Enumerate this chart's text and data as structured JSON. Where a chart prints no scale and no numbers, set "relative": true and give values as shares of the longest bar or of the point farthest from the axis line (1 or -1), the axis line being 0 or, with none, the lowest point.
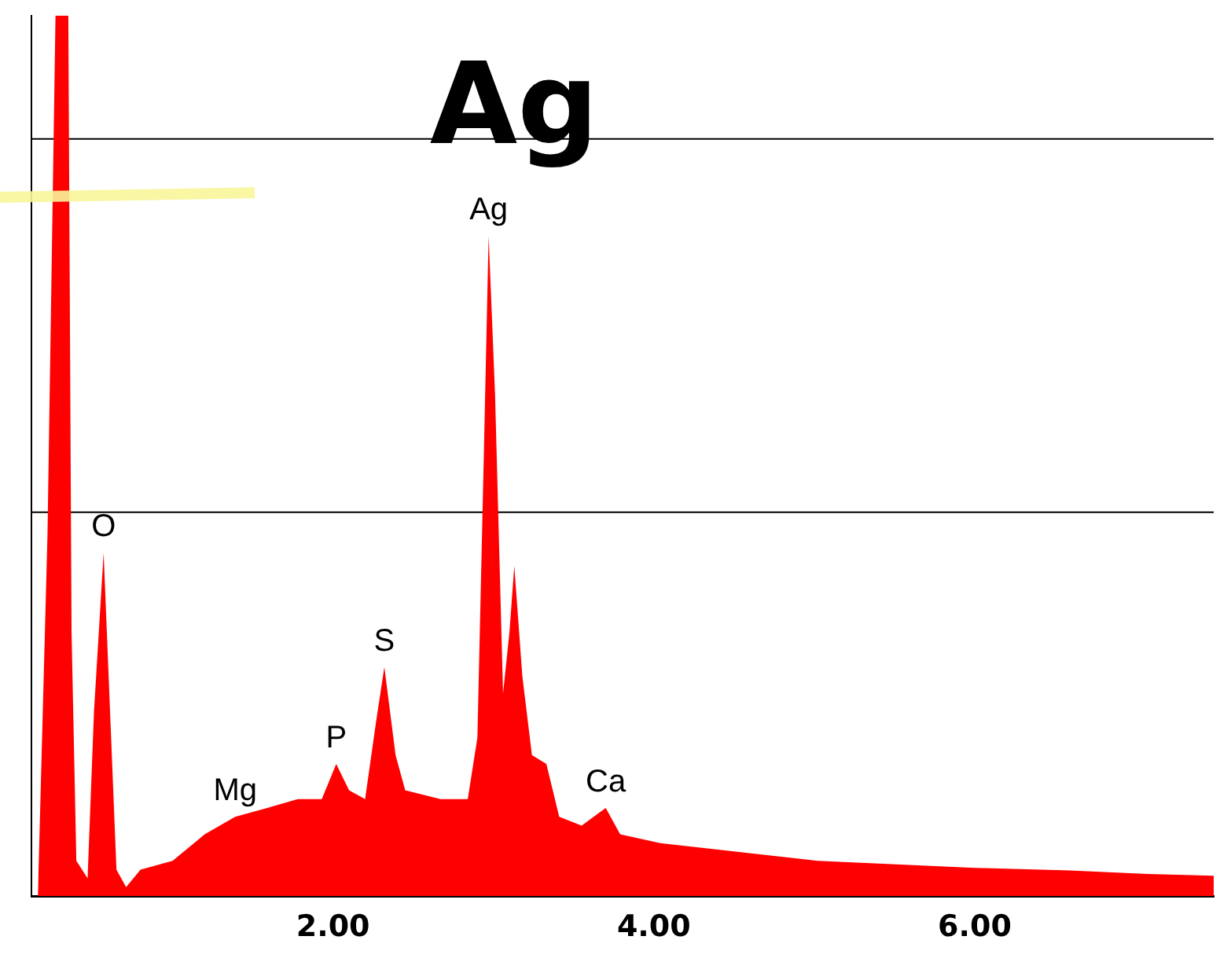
{
  "chart_data": {
    "type": "area",
    "title": "Ag",
    "relative": true,
    "xlim": [
      0.12,
      7.49
    ],
    "xticks": [
      {
        "value": 2,
        "label": "2.00"
      },
      {
        "value": 4,
        "label": "4.00"
      },
      {
        "value": 6,
        "label": "6.00"
      }
    ],
    "series": [
      {
        "color": "#ff0000",
        "x": [
          0.16,
          0.22,
          0.27,
          0.35,
          0.37,
          0.4,
          0.47,
          0.51,
          0.57,
          0.61,
          0.65,
          0.71,
          0.8,
          1.0,
          1.2,
          1.39,
          1.59,
          1.78,
          1.93,
          2.02,
          2.1,
          2.2,
          2.27,
          2.32,
          2.39,
          2.45,
          2.67,
          2.84,
          2.9,
          2.94,
          2.97,
          3.01,
          3.06,
          3.1,
          3.13,
          3.18,
          3.24,
          3.33,
          3.41,
          3.55,
          3.7,
          3.79,
          4.04,
          4.53,
          5.02,
          5.51,
          6.0,
          6.59,
          7.08,
          7.49
        ],
        "values": [
          0,
          0.41,
          1,
          1,
          0.3,
          0.04,
          0.02,
          0.21,
          0.39,
          0.21,
          0.03,
          0.01,
          0.03,
          0.04,
          0.07,
          0.09,
          0.1,
          0.11,
          0.11,
          0.15,
          0.12,
          0.11,
          0.2,
          0.26,
          0.16,
          0.12,
          0.11,
          0.11,
          0.18,
          0.5,
          0.75,
          0.57,
          0.23,
          0.3,
          0.375,
          0.25,
          0.16,
          0.15,
          0.09,
          0.08,
          0.1,
          0.07,
          0.06,
          0.05,
          0.04,
          0.036,
          0.032,
          0.029,
          0.025,
          0.023
        ]
      }
    ],
    "ref_lines": [
      {
        "axis": "y",
        "value": 0.436,
        "color": "#000000"
      },
      {
        "axis": "y",
        "value": 0.86,
        "color": "#000000"
      }
    ],
    "annotations": [
      {
        "text": "Ag",
        "x": 2.97,
        "y": 0.75
      },
      {
        "text": "O",
        "x": 0.57,
        "y": 0.39
      },
      {
        "text": "S",
        "x": 2.32,
        "y": 0.26
      },
      {
        "text": "P",
        "x": 2.02,
        "y": 0.15
      },
      {
        "text": "Mg",
        "x": 1.39,
        "y": 0.09
      },
      {
        "text": "Ca",
        "x": 3.7,
        "y": 0.1
      }
    ]
  }
}
